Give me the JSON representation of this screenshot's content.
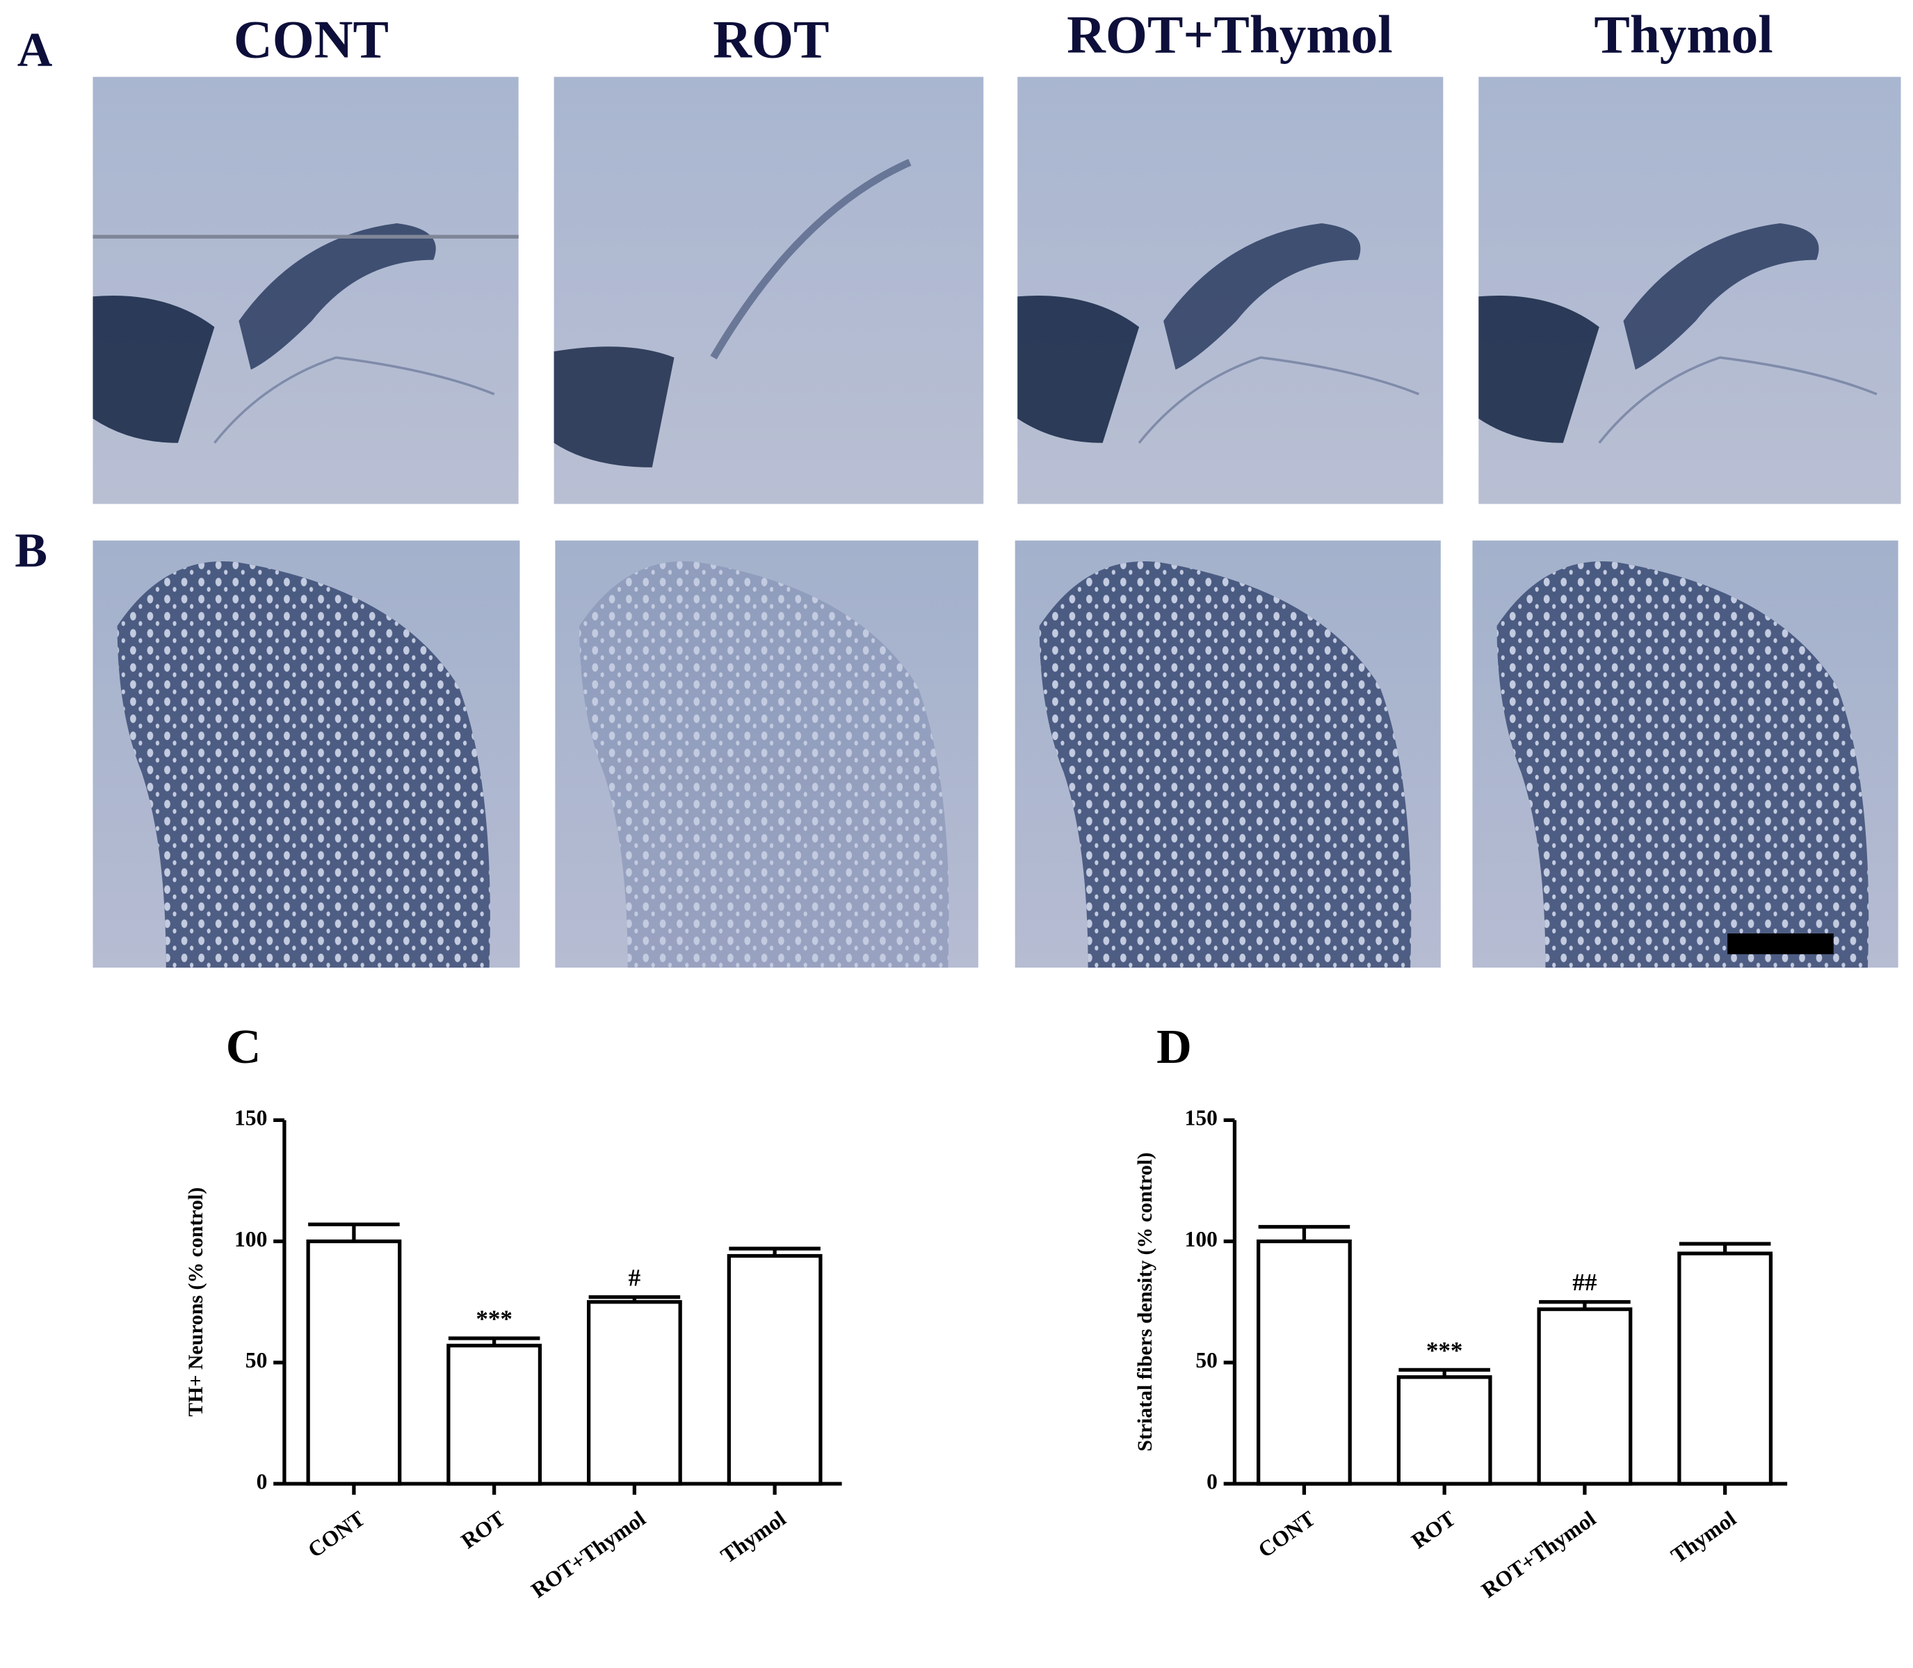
{
  "panel_labels": [
    "A",
    "B"
  ],
  "column_titles": [
    "CONT",
    "ROT",
    "ROT+Thymol",
    "Thymol"
  ],
  "chart_data": [
    {
      "type": "bar",
      "panel": "C",
      "y_label": "TH+ Neurons (% control)",
      "categories": [
        "CONT",
        "ROT",
        "ROT+Thymol",
        "Thymol"
      ],
      "values": [
        100,
        57,
        75,
        94
      ],
      "errors": [
        7,
        3,
        2,
        3
      ],
      "annotations": [
        null,
        "***",
        "#",
        null
      ],
      "color": "#ffffff",
      "ylim": [
        0,
        150
      ],
      "yticks": [
        0,
        50,
        100,
        150
      ]
    },
    {
      "type": "bar",
      "panel": "D",
      "y_label": "Striatal fibers density (% control)",
      "categories": [
        "CONT",
        "ROT",
        "ROT+Thymol",
        "Thymol"
      ],
      "values": [
        100,
        44,
        72,
        95
      ],
      "errors": [
        6,
        3,
        3,
        4
      ],
      "annotations": [
        null,
        "***",
        "##",
        null
      ],
      "color": "#ffffff",
      "ylim": [
        0,
        150
      ],
      "yticks": [
        0,
        50,
        100,
        150
      ]
    }
  ]
}
